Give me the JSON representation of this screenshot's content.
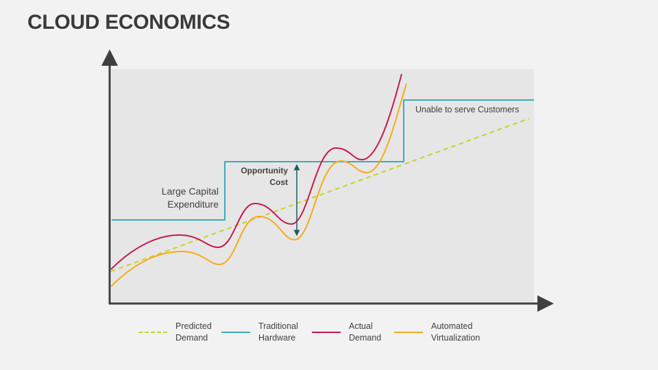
{
  "title": "CLOUD ECONOMICS",
  "annotations": {
    "large_capex": [
      "Large Capital",
      "Expenditure"
    ],
    "opportunity_cost": [
      "Opportunity",
      "Cost"
    ],
    "unable": "Unable to serve Customers"
  },
  "legend": [
    {
      "line1": "Predicted",
      "line2": "Demand",
      "color": "#c5d22a",
      "style": "dashed"
    },
    {
      "line1": "Traditional",
      "line2": "Hardware",
      "color": "#3aabb8",
      "style": "solid"
    },
    {
      "line1": "Actual",
      "line2": "Demand",
      "color": "#c8174a",
      "style": "solid"
    },
    {
      "line1": "Automated",
      "line2": "Virtualization",
      "color": "#f7ab16",
      "style": "solid"
    }
  ]
}
